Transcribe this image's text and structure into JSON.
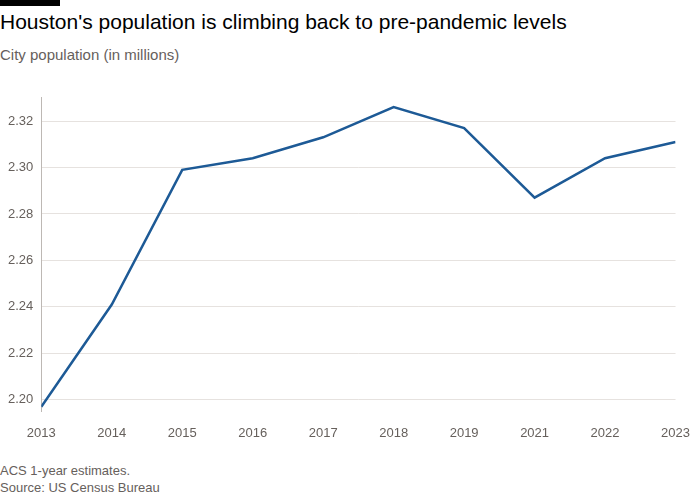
{
  "chart_data": {
    "type": "line",
    "title": "Houston's population is climbing back to pre-pandemic levels",
    "subtitle": "City population (in millions)",
    "footnote": "ACS 1-year estimates.",
    "source": "Source: US Census Bureau",
    "categories": [
      "2013",
      "2014",
      "2015",
      "2016",
      "2017",
      "2018",
      "2019",
      "2021",
      "2022",
      "2023"
    ],
    "values": [
      2.197,
      2.241,
      2.299,
      2.304,
      2.313,
      2.326,
      2.317,
      2.287,
      2.304,
      2.311
    ],
    "color": "#1d5a96",
    "ylim": [
      2.195,
      2.33
    ],
    "yticks": [
      {
        "value": 2.2,
        "label": "2.20"
      },
      2.22,
      2.24,
      2.26,
      2.28,
      {
        "value": 2.3,
        "label": "2.30"
      },
      2.32
    ],
    "grid": true
  }
}
